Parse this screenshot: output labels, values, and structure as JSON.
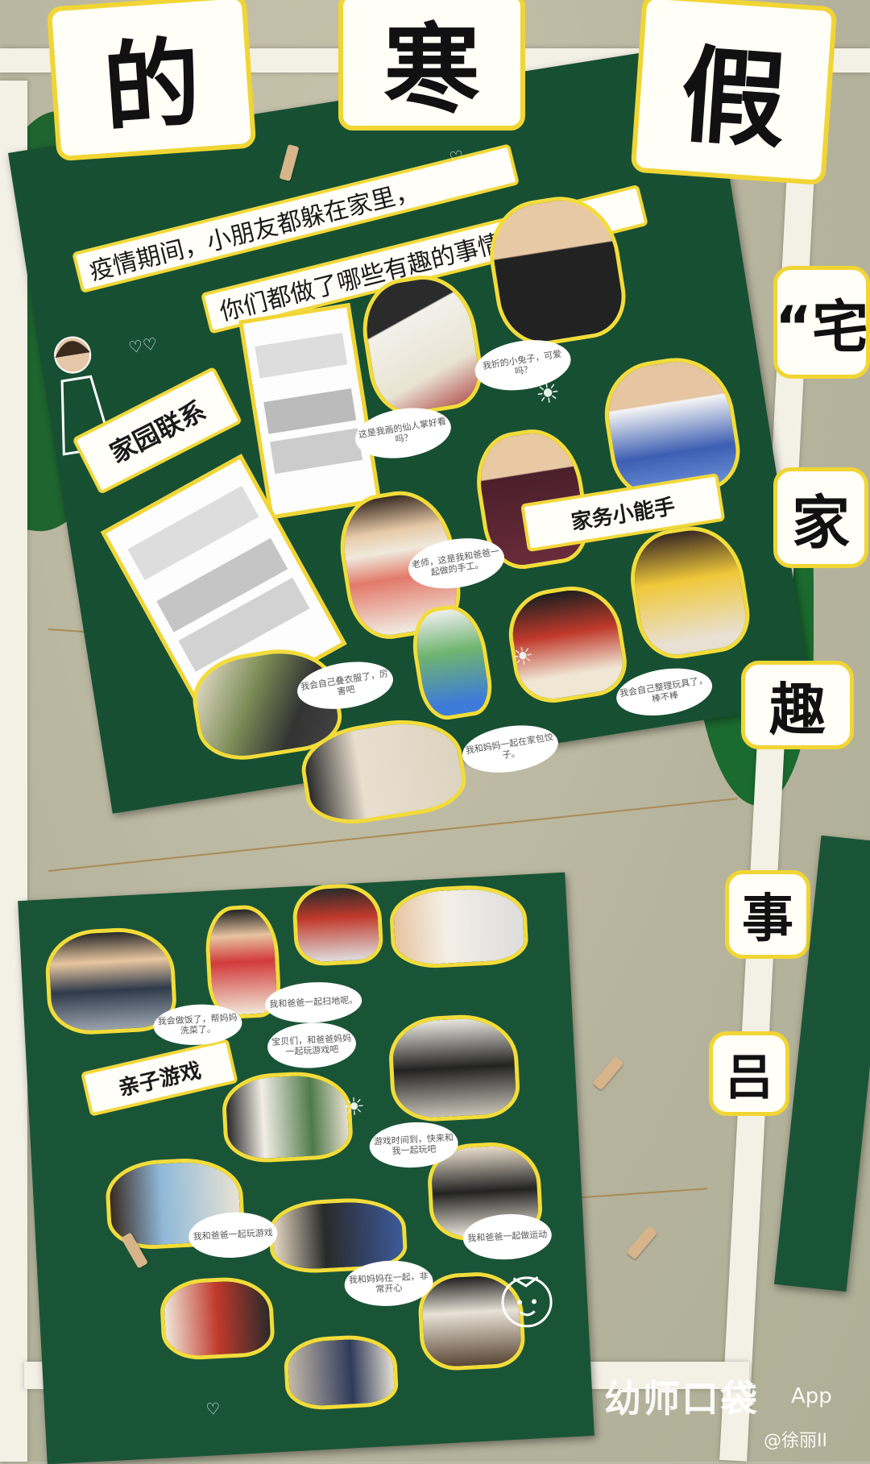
{
  "title_cards": [
    "的",
    "寒",
    "假"
  ],
  "side_cards": [
    "“宅",
    "家",
    "趣",
    "事",
    "”",
    "吕"
  ],
  "banner": {
    "line1": "疫情期间，小朋友都躲在家里，",
    "line2": "你们都做了哪些有趣的事情呢？"
  },
  "section_labels": {
    "home_school": "家园联系",
    "housework": "家务小能手",
    "parent_child": "亲子游戏"
  },
  "bubbles": [
    "我折的小兔子，可爱吗？",
    "这是我画的仙人掌好看吗？",
    "老师，这是我和爸爸一起做的手工。",
    "我会自己叠衣服了，厉害吧",
    "我会自己整理玩具了，棒不棒",
    "我和妈妈一起在家包饺子。",
    "我会做饭了，帮妈妈洗菜了。",
    "我和爸爸一起扫地呢。",
    "宝贝们，和爸爸妈妈一起玩游戏吧",
    "游戏时间到，快来和我一起玩吧",
    "我和爸爸一起玩游戏",
    "我和妈妈在一起，非常开心",
    "我和爸爸一起做运动"
  ],
  "watermark": {
    "brand": "幼师口袋",
    "app": "App",
    "author": "@徐丽II"
  },
  "colors": {
    "poster_green": "#174f33",
    "frame_yellow": "#f1d534",
    "wall": "#bdbba5"
  }
}
